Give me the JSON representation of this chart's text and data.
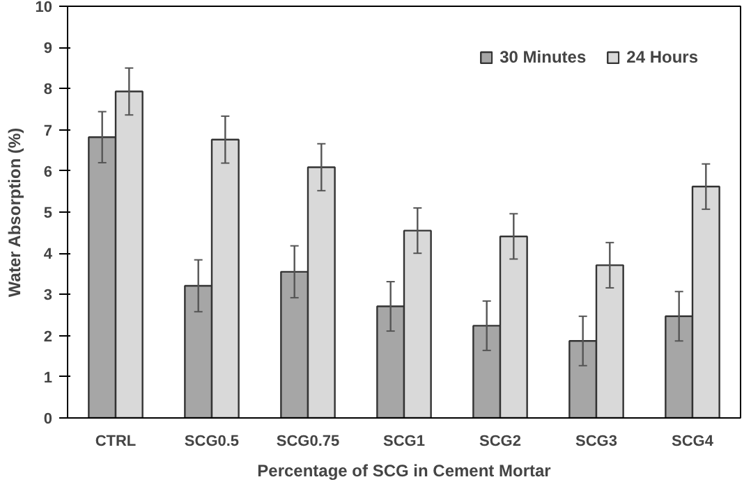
{
  "chart_data": {
    "type": "bar",
    "xlabel": "Percentage of SCG in Cement Mortar",
    "ylabel": "Water Absorption (%)",
    "categories": [
      "CTRL",
      "SCG0.5",
      "SCG0.75",
      "SCG1",
      "SCG2",
      "SCG3",
      "SCG4"
    ],
    "series": [
      {
        "name": "30 Minutes",
        "color": "#a6a6a6",
        "values": [
          6.82,
          3.21,
          3.55,
          2.71,
          2.24,
          1.87,
          2.47
        ],
        "errors": [
          0.62,
          0.63,
          0.63,
          0.6,
          0.6,
          0.6,
          0.6
        ]
      },
      {
        "name": "24 Hours",
        "color": "#d9d9d9",
        "values": [
          7.93,
          6.76,
          6.09,
          4.55,
          4.41,
          3.71,
          5.62
        ],
        "errors": [
          0.57,
          0.57,
          0.57,
          0.55,
          0.55,
          0.55,
          0.55
        ]
      }
    ],
    "ylim": [
      0,
      10
    ],
    "yticks": [
      0,
      1,
      2,
      3,
      4,
      5,
      6,
      7,
      8,
      9,
      10
    ],
    "grid": false,
    "legend": "top right"
  }
}
